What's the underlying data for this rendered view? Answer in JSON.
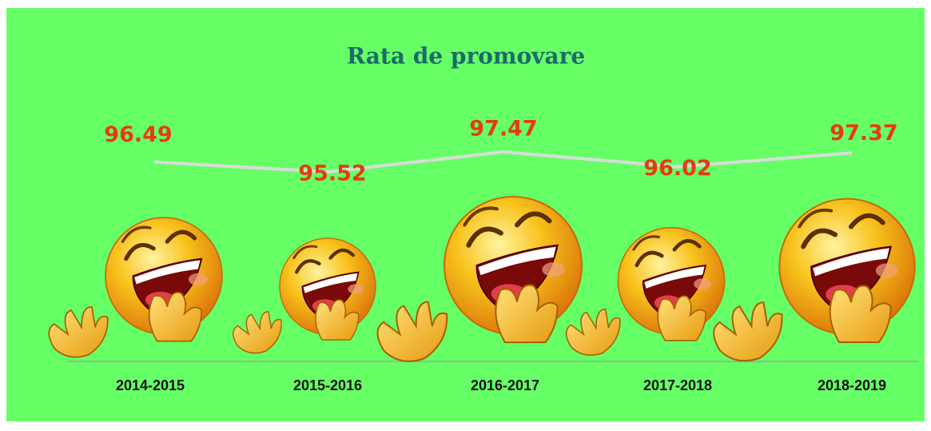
{
  "chart_data": {
    "type": "line",
    "title": "Rata de promovare",
    "categories": [
      "2014-2015",
      "2015-2016",
      "2016-2017",
      "2017-2018",
      "2018-2019"
    ],
    "values": [
      96.49,
      95.52,
      97.47,
      96.02,
      97.37
    ],
    "color": "#d9dcd9"
  }
}
